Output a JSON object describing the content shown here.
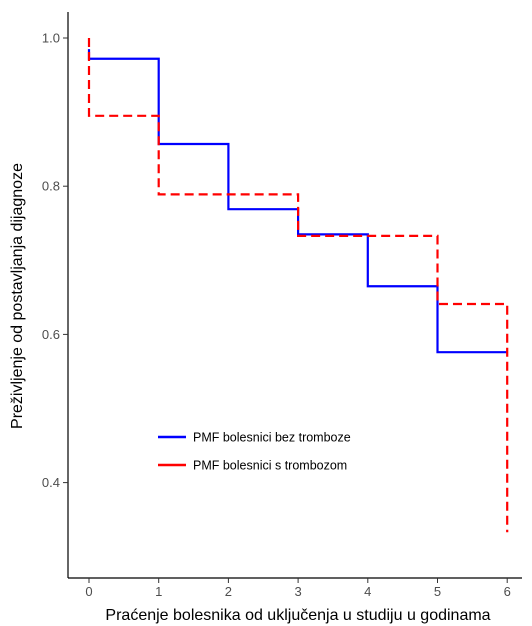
{
  "chart_data": {
    "type": "line",
    "step": true,
    "xlabel": "Praćenje bolesnika od uključenja u studiju u godinama",
    "ylabel": "Preživljenje od postavljanja dijagnoze",
    "xlim": [
      0,
      6
    ],
    "ylim": [
      0.33,
      1.0
    ],
    "x_ticks": [
      "0",
      "1",
      "2",
      "3",
      "4",
      "5",
      "6"
    ],
    "y_ticks": [
      "0.4",
      "0.6",
      "0.8",
      "1.0"
    ],
    "grid": false,
    "legend_position": "inside-left",
    "series": [
      {
        "name": "PMF bolesnici bez tromboze",
        "color": "#0000ff",
        "style": "solid",
        "x": [
          0,
          0,
          1,
          2,
          3,
          4,
          5,
          6
        ],
        "y": [
          0.985,
          0.972,
          0.857,
          0.769,
          0.735,
          0.665,
          0.576,
          0.576
        ]
      },
      {
        "name": "PMF bolesnici s trombozom",
        "color": "#ff0000",
        "style": "dashed",
        "x": [
          0,
          0,
          1,
          2,
          3,
          4,
          5,
          6
        ],
        "y": [
          1.0,
          0.895,
          0.789,
          0.789,
          0.733,
          0.733,
          0.641,
          0.333
        ]
      }
    ]
  }
}
